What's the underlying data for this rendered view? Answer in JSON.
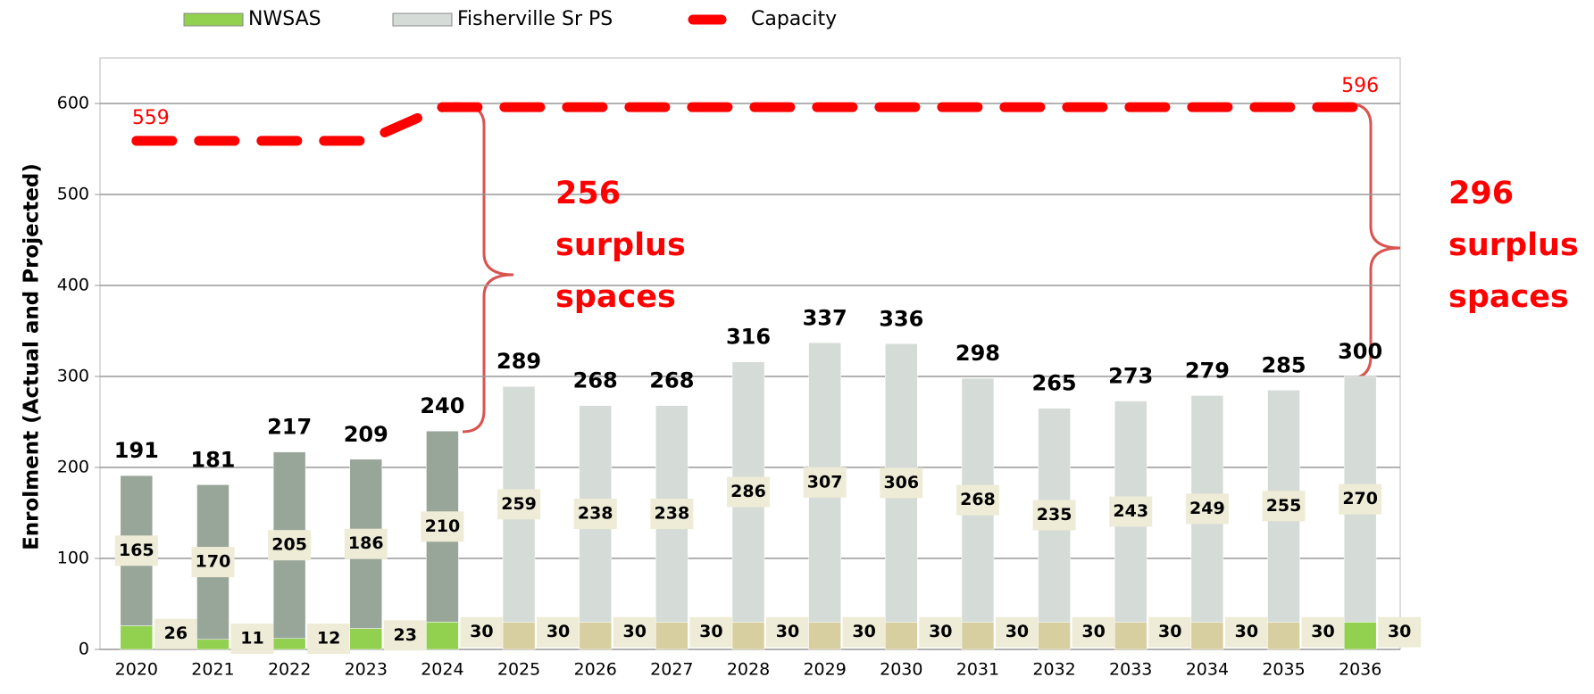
{
  "chart_data": {
    "type": "bar",
    "stacked": true,
    "ylabel": "Enrolment (Actual and Projected)",
    "categories": [
      "2020",
      "2021",
      "2022",
      "2023",
      "2024",
      "2025",
      "2026",
      "2027",
      "2028",
      "2029",
      "2030",
      "2031",
      "2032",
      "2033",
      "2034",
      "2035",
      "2036"
    ],
    "series": [
      {
        "name": "NWSAS",
        "color": "#92d050",
        "colors": [
          "#92d050",
          "#92d050",
          "#92d050",
          "#92d050",
          "#92d050",
          "#d8cfa1",
          "#d8cfa1",
          "#d8cfa1",
          "#d8cfa1",
          "#d8cfa1",
          "#d8cfa1",
          "#d8cfa1",
          "#d8cfa1",
          "#d8cfa1",
          "#d8cfa1",
          "#d8cfa1",
          "#92d050"
        ],
        "values": [
          26,
          11,
          12,
          23,
          30,
          30,
          30,
          30,
          30,
          30,
          30,
          30,
          30,
          30,
          30,
          30,
          30
        ]
      },
      {
        "name": "Fisherville Sr PS",
        "color": "#d5dbd6",
        "colors": [
          "#98a69a",
          "#98a69a",
          "#98a69a",
          "#98a69a",
          "#98a69a",
          "#d5dbd6",
          "#d5dbd6",
          "#d5dbd6",
          "#d5dbd6",
          "#d5dbd6",
          "#d5dbd6",
          "#d5dbd6",
          "#d5dbd6",
          "#d5dbd6",
          "#d5dbd6",
          "#d5dbd6",
          "#d5dbd6"
        ],
        "values": [
          165,
          170,
          205,
          186,
          210,
          259,
          238,
          238,
          286,
          307,
          306,
          268,
          235,
          243,
          249,
          255,
          270
        ]
      },
      {
        "name": "Capacity",
        "type": "line",
        "color": "#ff0000",
        "dashed": true,
        "values": [
          559,
          559,
          559,
          559,
          596,
          596,
          596,
          596,
          596,
          596,
          596,
          596,
          596,
          596,
          596,
          596,
          596
        ]
      }
    ],
    "total_labels": [
      "191",
      "181",
      "217",
      "209",
      "240",
      "289",
      "268",
      "268",
      "316",
      "337",
      "336",
      "298",
      "265",
      "273",
      "279",
      "285",
      "300"
    ],
    "annotations": [
      [
        "256",
        "surplus",
        "spaces"
      ],
      [
        "296",
        "surplus",
        "spaces"
      ]
    ],
    "ylim": [
      0,
      650
    ],
    "yticks": [
      0,
      100,
      200,
      300,
      400,
      500,
      600
    ],
    "grid": true,
    "legend": "top"
  }
}
